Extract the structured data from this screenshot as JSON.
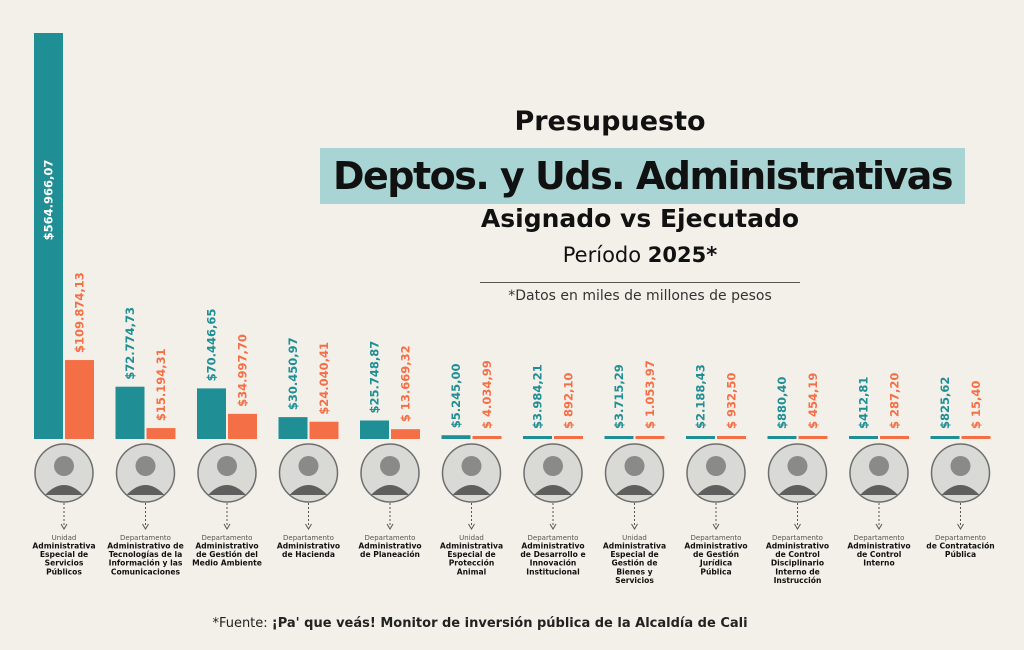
{
  "title": {
    "line1": "Presupuesto",
    "line2": "Deptos. y Uds. Administrativas",
    "line3": "Asignado vs Ejecutado",
    "period_label": "Período",
    "period_year": "2025*",
    "note": "*Datos en miles de millones de pesos"
  },
  "footer": {
    "prefix": "*Fuente: ",
    "source": "¡Pa' que veás! Monitor de inversión pública de la Alcaldía de Cali"
  },
  "colors": {
    "asignado": "#1f8f95",
    "ejecutado": "#f46f46",
    "highlight": "#a8d5d3"
  },
  "chart_data": {
    "type": "bar",
    "categories": [
      {
        "kind": "Unidad",
        "name": [
          "Administrativa",
          "Especial de",
          "Servicios",
          "Públicos"
        ]
      },
      {
        "kind": "Departamento",
        "name": [
          "Administrativo de",
          "Tecnologías de la",
          "Información y las",
          "Comunicaciones"
        ]
      },
      {
        "kind": "Departamento",
        "name": [
          "Administrativo",
          "de Gestión del",
          "Medio Ambiente"
        ]
      },
      {
        "kind": "Departamento",
        "name": [
          "Administrativo",
          "de Hacienda"
        ]
      },
      {
        "kind": "Departamento",
        "name": [
          "Administrativo",
          "de Planeación"
        ]
      },
      {
        "kind": "Unidad",
        "name": [
          "Administrativa",
          "Especial de",
          "Protección",
          "Animal"
        ]
      },
      {
        "kind": "Departamento",
        "name": [
          "Administrativo",
          "de Desarrollo e",
          "Innovación",
          "Institucional"
        ]
      },
      {
        "kind": "Unidad",
        "name": [
          "Administrativa",
          "Especial de",
          "Gestión de",
          "Bienes y",
          "Servicios"
        ]
      },
      {
        "kind": "Departamento",
        "name": [
          "Administrativo",
          "de Gestión",
          "Jurídica",
          "Pública"
        ]
      },
      {
        "kind": "Departamento",
        "name": [
          "Administrativo",
          "de Control",
          "Disciplinario",
          "Interno de",
          "Instrucción"
        ]
      },
      {
        "kind": "Departamento",
        "name": [
          "Administrativo",
          "de Control",
          "Interno"
        ]
      },
      {
        "kind": "Departamento",
        "name": [
          "de Contratación",
          "Pública"
        ]
      }
    ],
    "series": [
      {
        "values": [
          564966.07,
          72774.73,
          70446.65,
          30450.97,
          25748.87,
          5245.0,
          3984.21,
          3715.29,
          2188.43,
          880.4,
          412.81,
          825.62
        ],
        "labels": [
          "$564.966,07",
          "$72.774,73",
          "$70.446,65",
          "$30.450,97",
          "$25.748,87",
          "$5.245,00",
          "$3.984,21",
          "$3.715,29",
          "$2.188,43",
          "$880,40",
          "$412,81",
          "$825,62"
        ]
      },
      {
        "values": [
          109874.13,
          15194.31,
          34997.7,
          24040.41,
          13669.32,
          4034.99,
          892.1,
          1053.97,
          932.5,
          454.19,
          287.2,
          15.4
        ],
        "labels": [
          "$109.874,13",
          "$15.194,31",
          "$34.997,70",
          "$24.040,41",
          "$ 13.669,32",
          "$ 4.034,99",
          "$ 892,10",
          "$ 1.053,97",
          "$ 932,50",
          "$ 454,19",
          "$ 287,20",
          "$ 15,40"
        ]
      }
    ],
    "ylim": [
      0,
      564966.07
    ],
    "grid": false,
    "legend": "none"
  }
}
